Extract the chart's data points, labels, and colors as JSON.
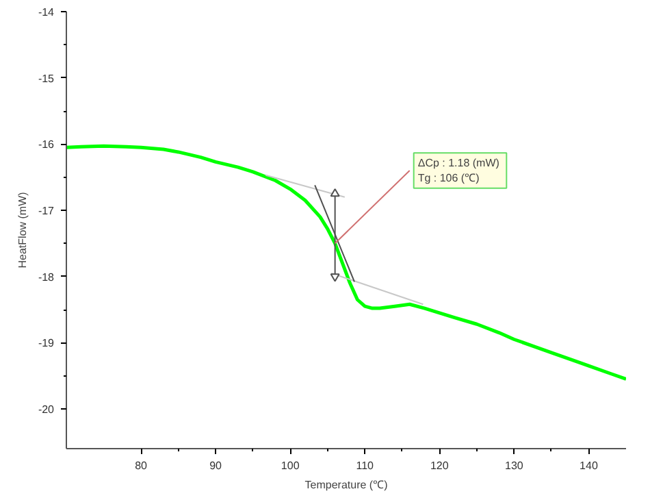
{
  "chart_data": {
    "type": "line",
    "xlabel": "Temperature (℃)",
    "ylabel": "HeatFlow (mW)",
    "xlim": [
      70,
      145
    ],
    "ylim": [
      -20.6,
      -14
    ],
    "xticks": [
      80,
      90,
      100,
      110,
      120,
      130,
      140
    ],
    "yticks": [
      -20,
      -19,
      -18,
      -17,
      -16,
      -15,
      -14
    ],
    "grid": false,
    "series": [
      {
        "color": "#00ff00",
        "x": [
          70,
          72,
          75,
          78,
          80,
          83,
          85,
          88,
          90,
          93,
          95,
          98,
          100,
          102,
          104,
          105,
          106,
          107,
          108,
          109,
          110,
          111,
          112,
          114,
          116,
          118,
          120,
          122,
          125,
          128,
          130,
          133,
          135,
          138,
          140,
          143,
          145
        ],
        "values": [
          -16.05,
          -16.04,
          -16.03,
          -16.04,
          -16.05,
          -16.08,
          -16.12,
          -16.2,
          -16.27,
          -16.35,
          -16.42,
          -16.55,
          -16.68,
          -16.85,
          -17.1,
          -17.28,
          -17.5,
          -17.8,
          -18.1,
          -18.35,
          -18.45,
          -18.48,
          -18.48,
          -18.45,
          -18.42,
          -18.48,
          -18.55,
          -18.62,
          -18.72,
          -18.85,
          -18.95,
          -19.07,
          -19.15,
          -19.27,
          -19.35,
          -19.47,
          -19.55
        ]
      },
      {
        "color": "#c8c8c8",
        "x": [
          96.7,
          107.3
        ],
        "values": [
          -16.47,
          -16.8
        ]
      },
      {
        "color": "#c8c8c8",
        "x": [
          105.5,
          117.8
        ],
        "values": [
          -17.95,
          -18.42
        ]
      },
      {
        "color": "#505050",
        "x": [
          103.3,
          108.6
        ],
        "values": [
          -16.62,
          -18.08
        ]
      },
      {
        "color": "#505050",
        "x": [
          106,
          106
        ],
        "values": [
          -16.75,
          -18.0
        ],
        "marker": "triangle"
      }
    ],
    "annotations": [
      {
        "text": "ΔCp :  1.18 (mW)\nTg :  106 (℃)",
        "x": 106,
        "y": -17.5
      }
    ]
  }
}
